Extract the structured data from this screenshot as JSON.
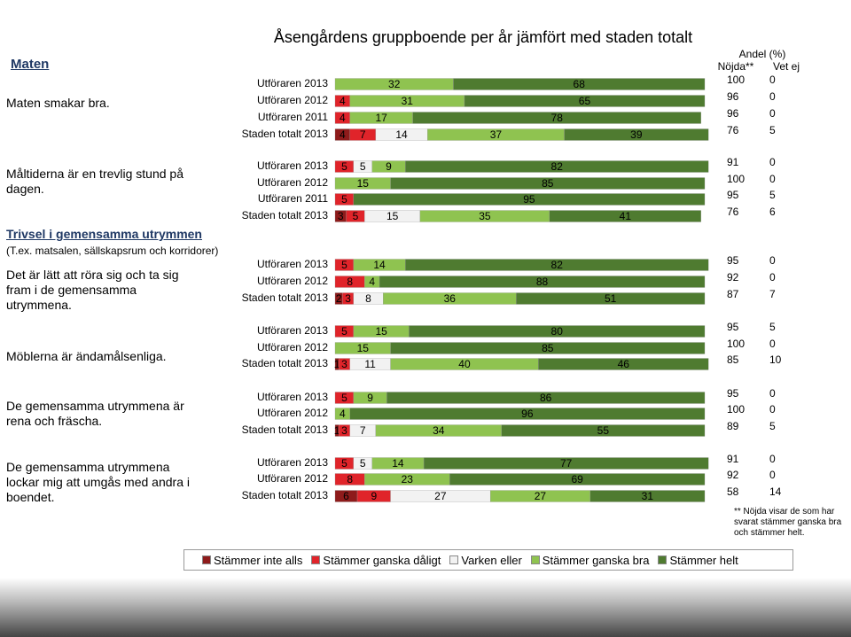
{
  "chart_data": {
    "type": "bar",
    "stacked": true,
    "horizontal": true,
    "title": "Åsengårdens gruppboende per år jämfört med staden totalt",
    "header": {
      "share": "Andel (%)",
      "satisfied": "Nöjda**",
      "unknown": "Vet ej"
    },
    "footnote": "** Nöjda visar de som har svarat stämmer ganska bra och stämmer helt.",
    "xlim": [
      0,
      100
    ],
    "series": [
      {
        "name": "Stämmer inte alls",
        "color": "#8e1b1b"
      },
      {
        "name": "Stämmer ganska dåligt",
        "color": "#e0242a"
      },
      {
        "name": "Varken eller",
        "color": "#f2f2f2"
      },
      {
        "name": "Stämmer ganska bra",
        "color": "#8fc350"
      },
      {
        "name": "Stämmer helt",
        "color": "#4f7b30"
      }
    ],
    "groups": [
      {
        "heading": "Maten",
        "label": "Maten smakar bra.",
        "rows": [
          {
            "name": "Utföraren 2013",
            "values": [
              0,
              null,
              null,
              32,
              68
            ],
            "satisfied": 100,
            "unknown": 0
          },
          {
            "name": "Utföraren 2012",
            "values": [
              0,
              4,
              null,
              31,
              65
            ],
            "satisfied": 96,
            "unknown": 0
          },
          {
            "name": "Utföraren 2011",
            "values": [
              0,
              4,
              null,
              17,
              78
            ],
            "satisfied": 96,
            "unknown": 0
          },
          {
            "name": "Staden totalt 2013",
            "values": [
              4,
              7,
              14,
              37,
              39
            ],
            "satisfied": 76,
            "unknown": 5
          }
        ]
      },
      {
        "label": "Måltiderna är en trevlig stund på dagen.",
        "rows": [
          {
            "name": "Utföraren 2013",
            "values": [
              0,
              5,
              5,
              9,
              82
            ],
            "satisfied": 91,
            "unknown": 0
          },
          {
            "name": "Utföraren 2012",
            "values": [
              0,
              null,
              null,
              15,
              85
            ],
            "satisfied": 100,
            "unknown": 0
          },
          {
            "name": "Utföraren 2011",
            "values": [
              0,
              5,
              0,
              null,
              95
            ],
            "satisfied": 95,
            "unknown": 5
          },
          {
            "name": "Staden totalt 2013",
            "values": [
              3,
              5,
              15,
              35,
              41
            ],
            "satisfied": 76,
            "unknown": 6
          }
        ]
      },
      {
        "section": "Trivsel i gemensamma utrymmen",
        "section_note": "(T.ex. matsalen, sällskapsrum och korridorer)",
        "label": "Det är lätt att röra sig och ta sig fram i de gemensamma utrymmena.",
        "rows": [
          {
            "name": "Utföraren 2013",
            "values": [
              null,
              5,
              0,
              14,
              82
            ],
            "satisfied": 95,
            "unknown": 0
          },
          {
            "name": "Utföraren 2012",
            "values": [
              0,
              8,
              null,
              4,
              88
            ],
            "satisfied": 92,
            "unknown": 0
          },
          {
            "name": "Staden totalt 2013",
            "values": [
              2,
              3,
              8,
              36,
              51
            ],
            "satisfied": 87,
            "unknown": 7
          }
        ]
      },
      {
        "label": "Möblerna är ändamålsenliga.",
        "rows": [
          {
            "name": "Utföraren 2013",
            "values": [
              0,
              5,
              null,
              15,
              80
            ],
            "satisfied": 95,
            "unknown": 5
          },
          {
            "name": "Utföraren 2012",
            "values": [
              0,
              null,
              null,
              15,
              85
            ],
            "satisfied": 100,
            "unknown": 0
          },
          {
            "name": "Staden totalt 2013",
            "values": [
              1,
              3,
              11,
              40,
              46
            ],
            "satisfied": 85,
            "unknown": 10
          }
        ]
      },
      {
        "label": "De gemensamma utrymmena är rena och fräscha.",
        "rows": [
          {
            "name": "Utföraren 2013",
            "values": [
              0,
              5,
              null,
              9,
              86
            ],
            "satisfied": 95,
            "unknown": 0
          },
          {
            "name": "Utföraren 2012",
            "values": [
              0,
              null,
              null,
              4,
              96
            ],
            "satisfied": 100,
            "unknown": 0
          },
          {
            "name": "Staden totalt 2013",
            "values": [
              1,
              3,
              7,
              34,
              55
            ],
            "satisfied": 89,
            "unknown": 5
          }
        ]
      },
      {
        "label": "De gemensamma utrymmena lockar mig att umgås med andra i boendet.",
        "rows": [
          {
            "name": "Utföraren 2013",
            "values": [
              0,
              5,
              5,
              14,
              77
            ],
            "satisfied": 91,
            "unknown": 0
          },
          {
            "name": "Utföraren 2012",
            "values": [
              0,
              8,
              null,
              23,
              69
            ],
            "satisfied": 92,
            "unknown": 0
          },
          {
            "name": "Staden totalt 2013",
            "values": [
              6,
              9,
              27,
              27,
              31
            ],
            "satisfied": 58,
            "unknown": 14
          }
        ]
      }
    ]
  }
}
